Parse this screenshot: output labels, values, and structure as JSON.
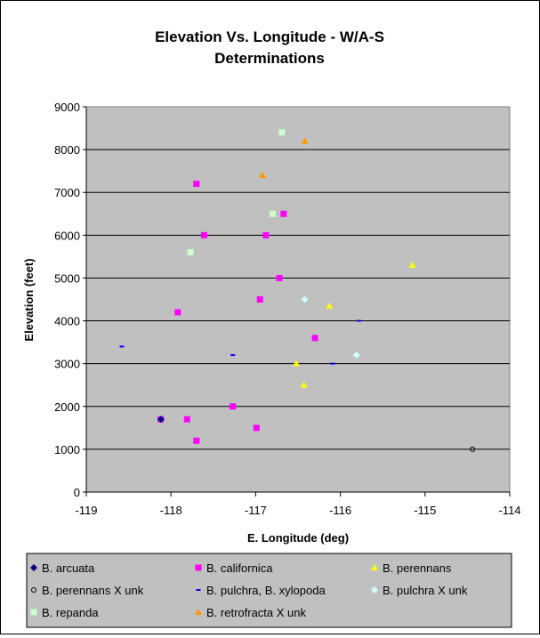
{
  "chart_data": {
    "type": "scatter",
    "title": [
      "Elevation Vs. Longitude - W/A-S",
      "Determinations"
    ],
    "xlabel": "E. Longitude (deg)",
    "ylabel": "Elevation (feet)",
    "xlim": [
      -119,
      -114
    ],
    "ylim": [
      0,
      9000
    ],
    "xticks": [
      "-119",
      "-118",
      "-117",
      "-116",
      "-115",
      "-114"
    ],
    "yticks": [
      "0",
      "1000",
      "2000",
      "3000",
      "4000",
      "5000",
      "6000",
      "7000",
      "8000",
      "9000"
    ],
    "grid": "horizontal",
    "legend_position": "bottom",
    "series": [
      {
        "name": "B. arcuata",
        "marker": "diamond",
        "color": "#000080",
        "points": [
          [
            -118.12,
            1700
          ]
        ]
      },
      {
        "name": "B. californica",
        "marker": "square",
        "color": "#FF00FF",
        "points": [
          [
            -117.7,
            7200
          ],
          [
            -117.61,
            6000
          ],
          [
            -116.88,
            6000
          ],
          [
            -116.67,
            6500
          ],
          [
            -116.72,
            5000
          ],
          [
            -117.92,
            4200
          ],
          [
            -116.95,
            4500
          ],
          [
            -116.3,
            3600
          ],
          [
            -117.27,
            2000
          ],
          [
            -118.12,
            1700
          ],
          [
            -117.81,
            1700
          ],
          [
            -116.99,
            1500
          ],
          [
            -117.7,
            1200
          ]
        ]
      },
      {
        "name": "B. perennans",
        "marker": "triangle",
        "color": "#FFFF00",
        "points": [
          [
            -115.15,
            5300
          ],
          [
            -116.13,
            4350
          ],
          [
            -116.52,
            3000
          ],
          [
            -116.43,
            2500
          ]
        ]
      },
      {
        "name": "B. perennans X unk",
        "marker": "circle",
        "color": "#000000",
        "points": [
          [
            -114.44,
            1000
          ]
        ]
      },
      {
        "name": "B. pulchra, B. xylopoda",
        "marker": "dash",
        "color": "#0000FF",
        "points": [
          [
            -118.58,
            3400
          ],
          [
            -117.27,
            3200
          ],
          [
            -115.78,
            4000
          ],
          [
            -116.09,
            3000
          ]
        ]
      },
      {
        "name": "B. pulchra X unk",
        "marker": "diamond",
        "color": "#CCFFFF",
        "points": [
          [
            -116.42,
            4500
          ],
          [
            -115.81,
            3200
          ]
        ]
      },
      {
        "name": "B. repanda",
        "marker": "square",
        "color": "#CCFFCC",
        "points": [
          [
            -116.69,
            8400
          ],
          [
            -116.8,
            6500
          ],
          [
            -117.77,
            5600
          ]
        ]
      },
      {
        "name": "B. retrofracta X unk",
        "marker": "triangle",
        "color": "#FF9900",
        "points": [
          [
            -116.42,
            8200
          ],
          [
            -116.92,
            7400
          ]
        ]
      }
    ]
  }
}
